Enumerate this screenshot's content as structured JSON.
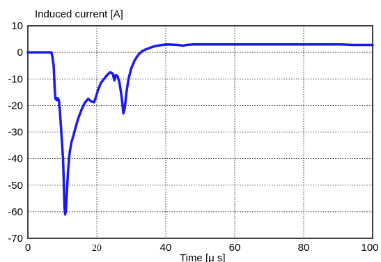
{
  "chart_data": {
    "type": "line",
    "title": "",
    "ylabel": "Induced current [A]",
    "xlabel": "Time [μ s]",
    "xlim": [
      0,
      100
    ],
    "ylim": [
      -70,
      10
    ],
    "grid": true,
    "x_ticks": [
      "0",
      "20",
      "40",
      "60",
      "80",
      "100"
    ],
    "y_ticks": [
      "10",
      "0",
      "-10",
      "-20",
      "-30",
      "-40",
      "-50",
      "-60",
      "-70"
    ],
    "series": [
      {
        "color": "#1a1aee",
        "x": [
          0,
          3,
          6.8,
          7.1,
          7.5,
          7.8,
          8.0,
          8.4,
          8.6,
          9.0,
          9.3,
          9.6,
          9.9,
          10.2,
          10.4,
          10.6,
          10.8,
          11.0,
          11.3,
          11.7,
          12.1,
          12.6,
          13.2,
          13.9,
          14.7,
          15.6,
          16.5,
          17.5,
          18.4,
          19.2,
          19.7,
          20.4,
          21.2,
          22.1,
          23.0,
          23.9,
          24.6,
          25.1,
          25.5,
          26.0,
          26.5,
          27.0,
          27.4,
          27.7,
          28.1,
          28.6,
          29.2,
          30.0,
          31.0,
          32.0,
          33.0,
          34.0,
          35.0,
          36.0,
          37.5,
          39.0,
          40.5,
          42.0,
          43.5,
          45.0,
          46.0,
          48.0,
          52.0,
          60.0,
          70.0,
          80.0,
          90.0,
          91.0,
          94.0,
          100.0
        ],
        "y": [
          0,
          0,
          0,
          -1.5,
          -5,
          -14,
          -17.5,
          -18,
          -17.2,
          -18,
          -22,
          -28,
          -34,
          -40,
          -48,
          -58,
          -61,
          -60,
          -53,
          -44,
          -38,
          -34,
          -31.5,
          -28,
          -24.5,
          -21.5,
          -19,
          -17.5,
          -18.5,
          -18.8,
          -17,
          -14,
          -11.5,
          -10,
          -8.5,
          -7.5,
          -8,
          -10.5,
          -8.5,
          -9,
          -11,
          -15,
          -19,
          -23,
          -21,
          -15,
          -10,
          -6,
          -3,
          -1,
          0.3,
          1,
          1.5,
          2,
          2.5,
          2.8,
          3,
          2.9,
          2.8,
          2.5,
          2.8,
          3,
          3,
          3,
          3,
          3,
          3,
          3,
          2.8,
          2.8
        ]
      }
    ]
  }
}
